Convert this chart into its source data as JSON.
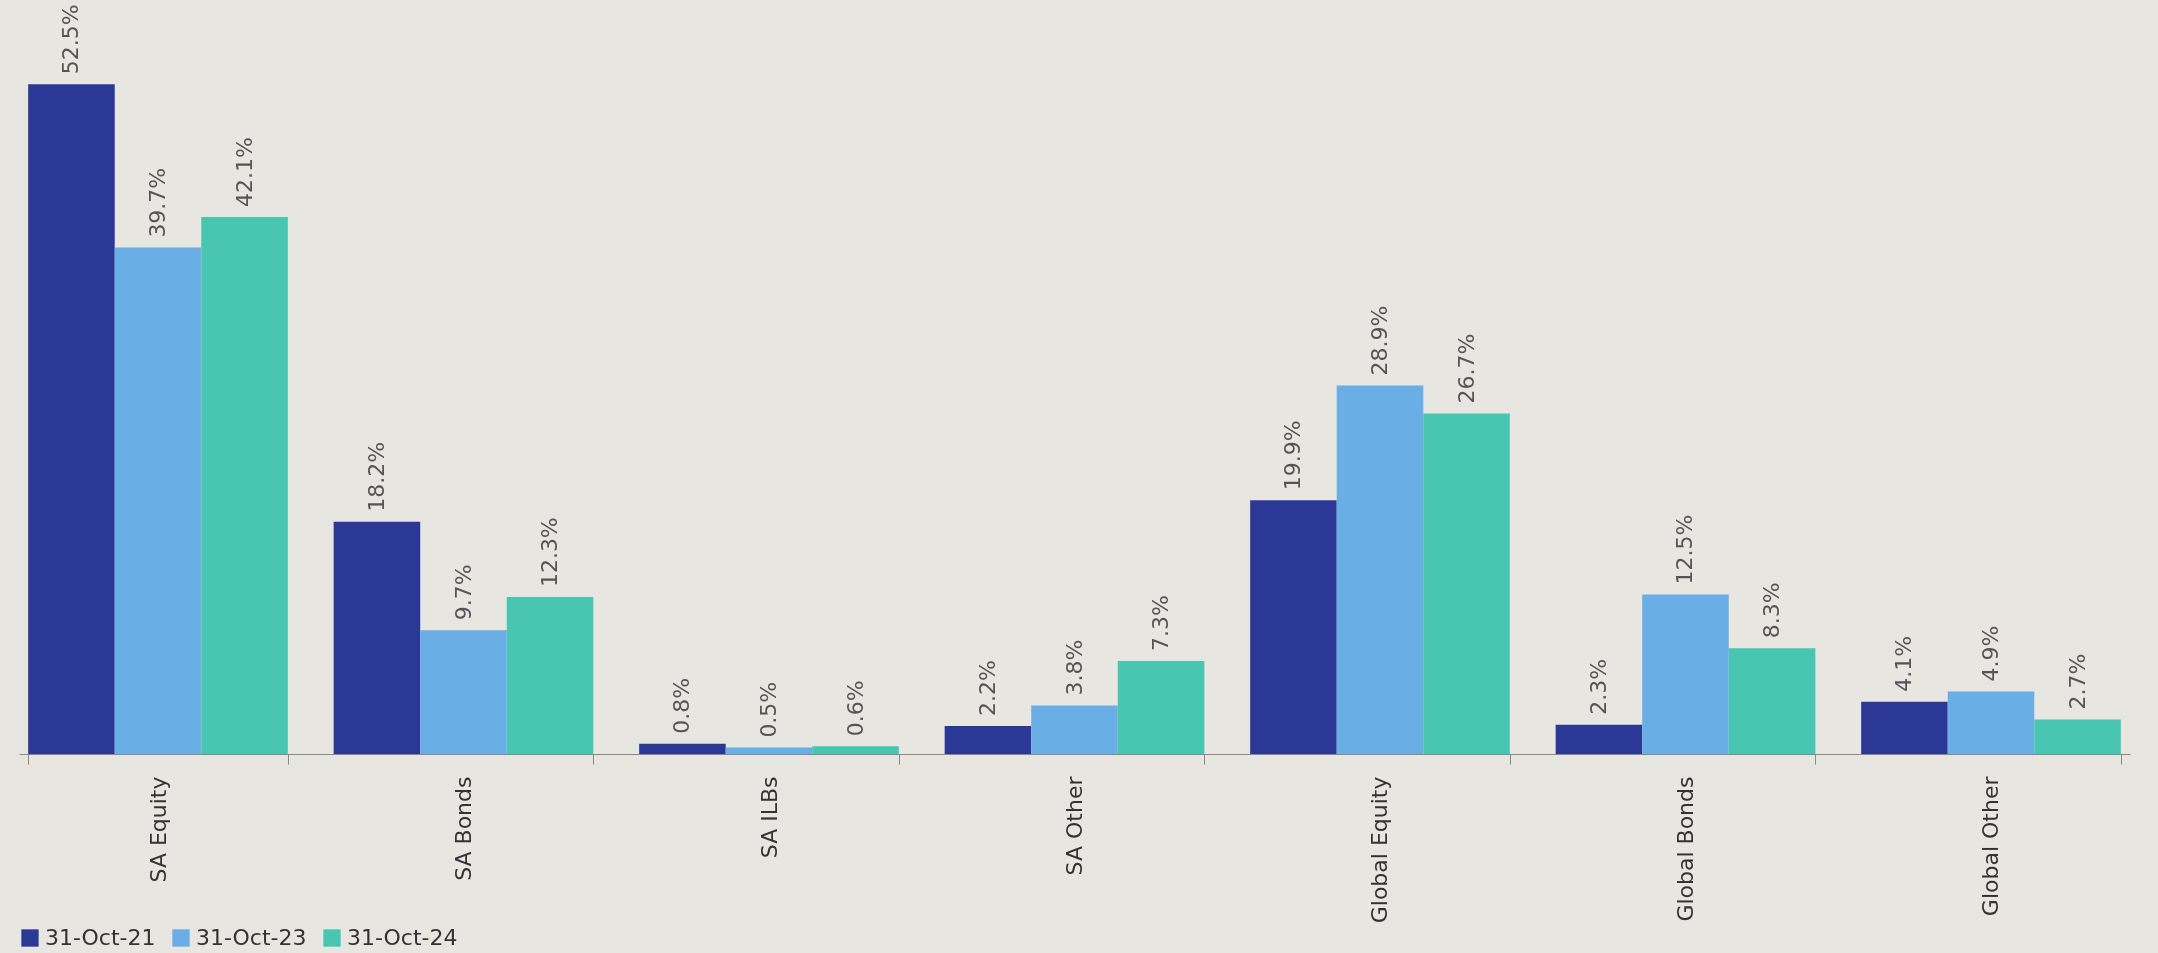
{
  "chart_data": {
    "type": "bar",
    "categories": [
      "SA Equity",
      "SA Bonds",
      "SA ILBs",
      "SA Other",
      "Global Equity",
      "Global Bonds",
      "Global Other"
    ],
    "series": [
      {
        "name": "31-Oct-21",
        "color": "#2b3896",
        "values": [
          52.5,
          18.2,
          0.8,
          2.2,
          19.9,
          2.3,
          4.1
        ],
        "value_labels": [
          "52.5%",
          "18.2%",
          "0.8%",
          "2.2%",
          "19.9%",
          "2.3%",
          "4.1%"
        ]
      },
      {
        "name": "31-Oct-23",
        "color": "#6aaee6",
        "values": [
          39.7,
          9.7,
          0.5,
          3.8,
          28.9,
          12.5,
          4.9
        ],
        "value_labels": [
          "39.7%",
          "9.7%",
          "0.5%",
          "3.8%",
          "28.9%",
          "12.5%",
          "4.9%"
        ]
      },
      {
        "name": "31-Oct-24",
        "color": "#48c6b2",
        "values": [
          42.1,
          12.3,
          0.6,
          7.3,
          26.7,
          8.3,
          2.7
        ],
        "value_labels": [
          "42.1%",
          "12.3%",
          "0.6%",
          "7.3%",
          "26.7%",
          "8.3%",
          "2.7%"
        ]
      }
    ],
    "legend": "bottom",
    "grid": false
  }
}
